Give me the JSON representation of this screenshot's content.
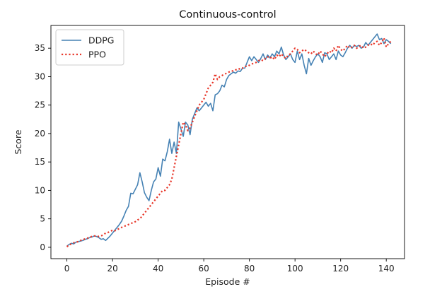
{
  "chart_data": {
    "type": "line",
    "title": "Continuous-control",
    "xlabel": "Episode #",
    "ylabel": "Score",
    "xlim": [
      -7,
      148
    ],
    "ylim": [
      -2,
      39
    ],
    "xticks": [
      0,
      20,
      40,
      60,
      80,
      100,
      120,
      140
    ],
    "yticks": [
      0,
      5,
      10,
      15,
      20,
      25,
      30,
      35
    ],
    "legend_position": "top-left",
    "grid": false,
    "series": [
      {
        "name": "DDPG",
        "color": "#4682b4",
        "style": "solid",
        "x": [
          0,
          1,
          2,
          3,
          4,
          5,
          6,
          7,
          8,
          9,
          10,
          11,
          12,
          13,
          14,
          15,
          16,
          17,
          18,
          19,
          20,
          21,
          22,
          23,
          24,
          25,
          26,
          27,
          28,
          29,
          30,
          31,
          32,
          33,
          34,
          35,
          36,
          37,
          38,
          39,
          40,
          41,
          42,
          43,
          44,
          45,
          46,
          47,
          48,
          49,
          50,
          51,
          52,
          53,
          54,
          55,
          56,
          57,
          58,
          59,
          60,
          61,
          62,
          63,
          64,
          65,
          66,
          67,
          68,
          69,
          70,
          71,
          72,
          73,
          74,
          75,
          76,
          77,
          78,
          79,
          80,
          81,
          82,
          83,
          84,
          85,
          86,
          87,
          88,
          89,
          90,
          91,
          92,
          93,
          94,
          95,
          96,
          97,
          98,
          99,
          100,
          101,
          102,
          103,
          104,
          105,
          106,
          107,
          108,
          109,
          110,
          111,
          112,
          113,
          114,
          115,
          116,
          117,
          118,
          119,
          120,
          121,
          122,
          123,
          124,
          125,
          126,
          127,
          128,
          129,
          130,
          131,
          132,
          133,
          134,
          135,
          136,
          137,
          138,
          139,
          140,
          141,
          142
        ],
        "y": [
          0.2,
          0.5,
          0.7,
          0.6,
          0.9,
          1.0,
          1.1,
          1.2,
          1.4,
          1.5,
          1.7,
          1.8,
          2.0,
          1.9,
          1.7,
          1.4,
          1.5,
          1.2,
          1.6,
          2.0,
          2.5,
          3.0,
          3.5,
          4.0,
          4.6,
          5.5,
          6.5,
          7.2,
          9.5,
          9.4,
          10.2,
          11.0,
          13.1,
          11.5,
          9.6,
          8.8,
          8.2,
          10.0,
          11.5,
          12.0,
          14.0,
          12.5,
          15.5,
          15.2,
          16.8,
          19.0,
          16.5,
          18.5,
          16.5,
          22.0,
          20.8,
          19.5,
          22.0,
          21.5,
          19.8,
          22.5,
          23.5,
          24.5,
          24.0,
          24.5,
          25.0,
          25.5,
          24.8,
          25.3,
          24.0,
          26.8,
          27.0,
          27.5,
          28.5,
          28.2,
          29.5,
          30.2,
          30.5,
          30.8,
          30.6,
          31.0,
          30.9,
          31.5,
          31.5,
          32.5,
          33.5,
          32.8,
          33.5,
          33.0,
          32.5,
          33.2,
          34.0,
          33.0,
          33.8,
          33.3,
          34.0,
          33.5,
          34.5,
          34.0,
          35.2,
          33.8,
          33.0,
          33.5,
          34.0,
          33.0,
          32.5,
          34.5,
          33.0,
          34.0,
          32.0,
          30.5,
          33.2,
          32.0,
          32.8,
          33.5,
          34.0,
          33.5,
          32.5,
          34.2,
          34.0,
          33.0,
          33.5,
          34.0,
          33.0,
          34.5,
          33.8,
          33.5,
          34.2,
          35.0,
          35.5,
          35.0,
          35.5,
          35.3,
          35.5,
          35.0,
          35.2,
          36.0,
          35.5,
          36.0,
          36.5,
          37.0,
          37.5,
          36.5,
          36.7,
          35.8,
          36.5,
          36.2,
          35.8
        ]
      },
      {
        "name": "PPO",
        "color": "#e8372a",
        "style": "dotted",
        "x": [
          0,
          1,
          2,
          3,
          4,
          5,
          6,
          7,
          8,
          9,
          10,
          11,
          12,
          13,
          14,
          15,
          16,
          17,
          18,
          19,
          20,
          21,
          22,
          23,
          24,
          25,
          26,
          27,
          28,
          29,
          30,
          31,
          32,
          33,
          34,
          35,
          36,
          37,
          38,
          39,
          40,
          41,
          42,
          43,
          44,
          45,
          46,
          47,
          48,
          49,
          50,
          51,
          52,
          53,
          54,
          55,
          56,
          57,
          58,
          59,
          60,
          61,
          62,
          63,
          64,
          65,
          66,
          67,
          68,
          69,
          70,
          71,
          72,
          73,
          74,
          75,
          76,
          77,
          78,
          79,
          80,
          81,
          82,
          83,
          84,
          85,
          86,
          87,
          88,
          89,
          90,
          91,
          92,
          93,
          94,
          95,
          96,
          97,
          98,
          99,
          100,
          101,
          102,
          103,
          104,
          105,
          106,
          107,
          108,
          109,
          110,
          111,
          112,
          113,
          114,
          115,
          116,
          117,
          118,
          119,
          120,
          121,
          122,
          123,
          124,
          125,
          126,
          127,
          128,
          129,
          130,
          131,
          132,
          133,
          134,
          135,
          136,
          137,
          138,
          139,
          140,
          141,
          142
        ],
        "y": [
          0.1,
          0.4,
          0.6,
          0.8,
          0.9,
          1.0,
          1.2,
          1.3,
          1.5,
          1.6,
          1.8,
          1.9,
          2.0,
          2.0,
          1.9,
          2.0,
          2.2,
          2.5,
          2.6,
          2.8,
          3.0,
          2.9,
          3.1,
          3.3,
          3.5,
          3.7,
          3.8,
          4.0,
          4.2,
          4.3,
          4.5,
          4.8,
          5.0,
          5.5,
          6.0,
          6.5,
          7.0,
          7.5,
          8.0,
          8.5,
          9.0,
          9.5,
          10.0,
          10.0,
          10.5,
          11.0,
          12.0,
          14.0,
          16.0,
          18.0,
          20.0,
          22.0,
          21.5,
          20.5,
          21.0,
          22.0,
          23.0,
          24.0,
          25.0,
          25.5,
          26.0,
          27.0,
          28.0,
          28.5,
          29.0,
          30.5,
          29.5,
          30.0,
          30.2,
          30.4,
          30.6,
          30.8,
          31.0,
          31.0,
          31.2,
          31.2,
          31.5,
          31.5,
          31.8,
          31.8,
          32.0,
          32.2,
          32.4,
          32.5,
          32.8,
          33.0,
          32.8,
          33.2,
          33.5,
          33.2,
          33.5,
          33.0,
          33.8,
          33.5,
          34.0,
          33.5,
          33.2,
          33.8,
          34.0,
          34.5,
          35.0,
          34.8,
          34.2,
          34.5,
          34.8,
          34.5,
          34.2,
          34.0,
          34.5,
          34.0,
          33.8,
          34.5,
          34.0,
          33.5,
          34.0,
          34.5,
          34.2,
          35.0,
          34.5,
          35.5,
          34.8,
          34.5,
          35.0,
          35.5,
          35.0,
          35.2,
          35.5,
          35.0,
          35.3,
          35.5,
          35.0,
          35.2,
          35.5,
          35.8,
          35.5,
          36.0,
          36.2,
          35.5,
          36.0,
          36.8,
          35.2,
          35.8,
          36.2
        ]
      }
    ]
  }
}
